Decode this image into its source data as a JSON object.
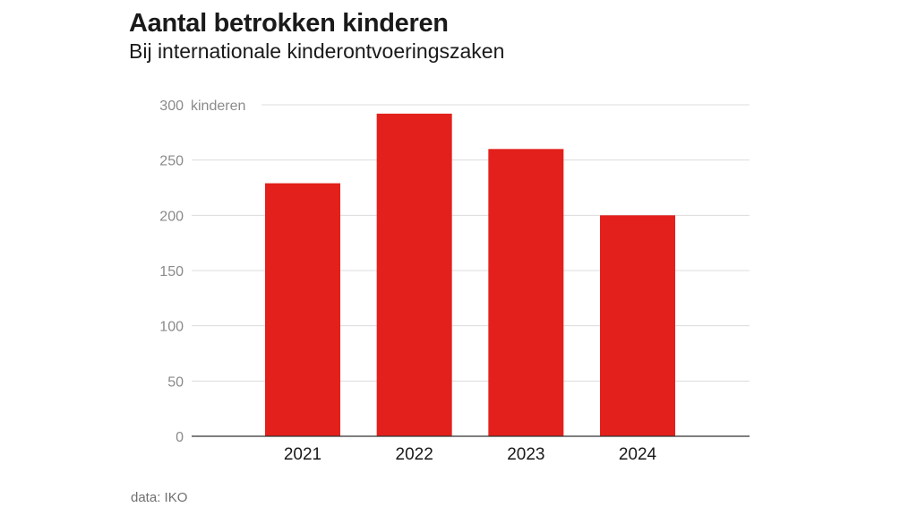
{
  "chart_data": {
    "type": "bar",
    "title": "Aantal betrokken kinderen",
    "subtitle": "Bij internationale kinderontvoeringszaken",
    "ylabel": "kinderen",
    "xlabel": "",
    "categories": [
      "2021",
      "2022",
      "2023",
      "2024"
    ],
    "values": [
      229,
      292,
      260,
      200
    ],
    "ylim": [
      0,
      300
    ],
    "yticks": [
      0,
      50,
      100,
      150,
      200,
      250,
      300
    ],
    "grid": true,
    "legend": "none",
    "bar_color": "#e3201b",
    "source": "data: IKO"
  }
}
